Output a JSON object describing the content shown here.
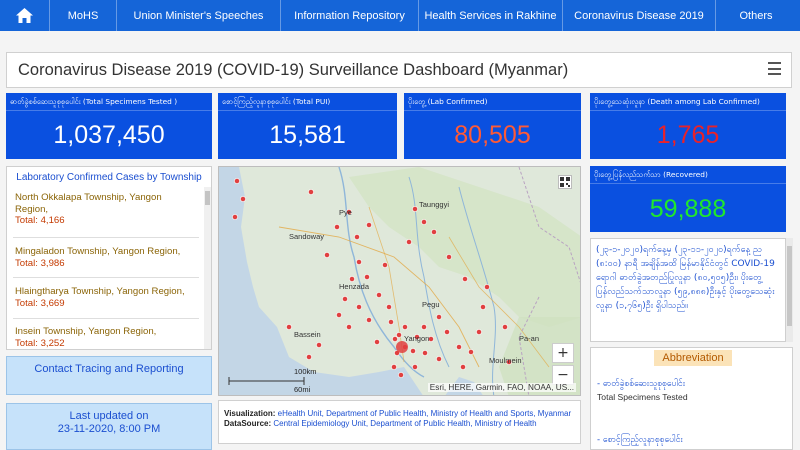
{
  "nav": {
    "items": [
      "MoHS",
      "Union Minister's Speeches",
      "Information Repository",
      "Health Services in Rakhine",
      "Coronavirus Disease 2019",
      "Others"
    ]
  },
  "title": "Coronavirus Disease 2019 (COVID-19) Surveillance Dashboard (Myanmar)",
  "cards": {
    "tested": {
      "label": "ဓာတ်ခွဲစစ်ဆေးသူစုစုပေါင်း (Total Specimens Tested )",
      "value": "1,037,450",
      "color": "#ffffff"
    },
    "pui": {
      "label": "စောင့်ကြည့်လူနာစုစုပေါင်း (Total PUI)",
      "value": "15,581",
      "color": "#ffffff"
    },
    "confirmed": {
      "label": "ပိုးတွေ့ (Lab Confirmed)",
      "value": "80,505",
      "color": "#ff5a36"
    },
    "deaths": {
      "label": "ပိုးတွေ့သေဆုံးလူနာ (Death among Lab Confirmed)",
      "value": "1,765",
      "color": "#e8222a"
    },
    "recovered": {
      "label": "ပိုးတွေ့ပြန်လည်သက်သာ (Recovered)",
      "value": "59,888",
      "color": "#20e82a"
    }
  },
  "township": {
    "header": "Laboratory Confirmed Cases by Township",
    "entries": [
      {
        "name": "North Okkalapa Township, Yangon Region,",
        "total": "Total: 4,166"
      },
      {
        "name": "Mingaladon Township, Yangon Region,",
        "total": "Total: 3,986"
      },
      {
        "name": "Hlaingtharya Township, Yangon Region,",
        "total": "Total: 3,669"
      },
      {
        "name": "Insein Township, Yangon Region,",
        "total": "Total: 3,252"
      }
    ]
  },
  "contact_tracing": "Contact Tracing and Reporting",
  "last_updated": {
    "label": "Last updated on",
    "value": "23-11-2020, 8:00 PM"
  },
  "map": {
    "places": [
      "Pye",
      "Taunggyi",
      "Sandoway",
      "Henzada",
      "Pegu",
      "Bassein",
      "Yangon",
      "Moulmein",
      "Pa-an"
    ],
    "scale": "100km",
    "scale2": "60mi",
    "attribution": "Esri, HERE, Garmin, FAO, NOAA, US...",
    "zoom_in": "+",
    "zoom_out": "−"
  },
  "credits": {
    "viz_label": "Visualization:",
    "viz_text": "eHealth Unit, Department of Public Health, Ministry of Health and Sports, Myanmar",
    "src_label": "DataSource:",
    "src_text": "Central Epidemiology Unit, Department of Public Health, Ministry of Health"
  },
  "myanmar_text": "(၂၃-၁-၂၀၂၀)ရက်နေ့မှ (၂၃-၁၁-၂၀၂၀)ရက်နေ့ ည (၈:၀၀) နာရီ အချိန်အထိ မြန်မာနိုင်ငံတွင် COVID-19 ရောဂါ ဓာတ်ခွဲအတည်ပြုလူနာ (၈၀,၅၀၅)ဦး၊ ပိုးတွေ့ပြန်လည်သက်သာလူနာ (၅၉,၈၈၈)ဦးနှင့် ပိုးတွေ့သေဆုံးလူနာ (၁,၇၆၅)ဦး ရှိပါသည်။",
  "abbreviation": {
    "header": "Abbreviation",
    "item1_mm": "ဓာတ်ခွဲစစ်ဆေးသူစုစုပေါင်း",
    "item1_en": "Total Specimens Tested",
    "item2_mm": "စောင့်ကြည့်လူနာစုစုပေါင်း"
  }
}
